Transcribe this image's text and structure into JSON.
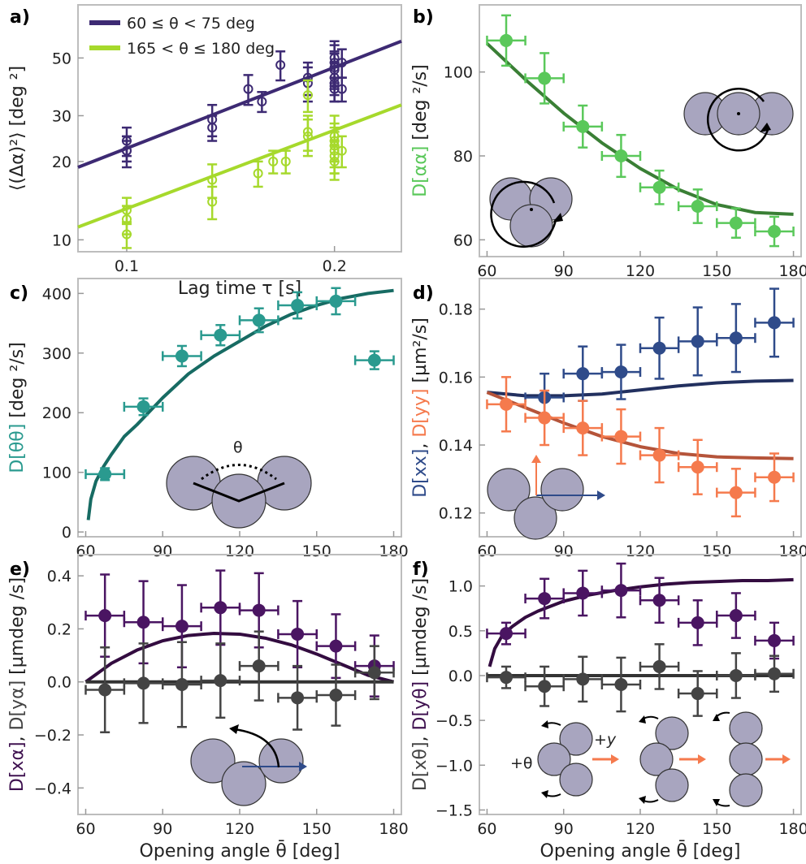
{
  "chart_data": [
    {
      "id": "a",
      "panel_label": "a)",
      "type": "scatter",
      "xlog": true,
      "ylog": true,
      "xlim": [
        0.085,
        0.25
      ],
      "ylim": [
        9,
        80
      ],
      "xticks": [
        0.1,
        0.2
      ],
      "xtick_labels": [
        "0.1",
        "0.2"
      ],
      "yticks": [
        10,
        20,
        30,
        50
      ],
      "ytick_labels": [
        "10",
        "20",
        "30",
        "50"
      ],
      "xlabel": "Lag time τ [s]",
      "ylabel": "⟨(Δα)²⟩ [deg ²]",
      "legend": [
        {
          "label": "60 ≤ θ < 75 deg",
          "color": "#3d2a73"
        },
        {
          "label": "165 < θ ≤ 180 deg",
          "color": "#a6d92c"
        }
      ],
      "series": [
        {
          "name": "60 ≤ θ < 75 deg",
          "color": "#3d2a73",
          "marker": "open-circle",
          "x": [
            0.1,
            0.1,
            0.1,
            0.133,
            0.133,
            0.15,
            0.157,
            0.167,
            0.183,
            0.183,
            0.2,
            0.2,
            0.2,
            0.2,
            0.2,
            0.2,
            0.2,
            0.205,
            0.205
          ],
          "y": [
            22,
            24,
            22,
            29,
            27,
            38,
            34,
            47,
            40,
            42,
            50,
            48,
            45,
            42,
            40,
            46,
            38,
            48,
            38
          ],
          "yerr": [
            3,
            3,
            2,
            4,
            3,
            5,
            3,
            6,
            6,
            6,
            8,
            8,
            7,
            6,
            6,
            7,
            4,
            6,
            4
          ],
          "fit_x": [
            0.085,
            0.25
          ],
          "fit_y": [
            19.0,
            58.0
          ]
        },
        {
          "name": "165 < θ ≤ 180 deg",
          "color": "#a6d92c",
          "marker": "open-circle",
          "x": [
            0.1,
            0.1,
            0.1,
            0.133,
            0.133,
            0.155,
            0.163,
            0.17,
            0.183,
            0.183,
            0.183,
            0.2,
            0.2,
            0.2,
            0.2,
            0.2,
            0.2,
            0.205
          ],
          "y": [
            13,
            12,
            10.5,
            17,
            14,
            18,
            20,
            20,
            36,
            26,
            25,
            25,
            22,
            20,
            21,
            23,
            24,
            22
          ],
          "yerr": [
            1.5,
            1.5,
            1.2,
            2.5,
            2,
            2,
            2,
            2,
            5,
            4,
            4,
            5,
            4,
            3,
            3,
            4,
            4,
            3
          ],
          "fit_x": [
            0.085,
            0.25
          ],
          "fit_y": [
            11.2,
            33.0
          ]
        }
      ]
    },
    {
      "id": "b",
      "panel_label": "b)",
      "type": "scatter",
      "xlim": [
        57,
        183
      ],
      "ylim": [
        56,
        116
      ],
      "xticks": [
        60,
        90,
        120,
        150,
        180
      ],
      "yticks": [
        60,
        80,
        100
      ],
      "xlabel": "",
      "ylabel_parts": [
        [
          "D[αα]",
          "#5ac85a"
        ],
        [
          " [deg ²/s]",
          "#222"
        ]
      ],
      "series": [
        {
          "color": "#5ac85a",
          "marker": "filled-circle",
          "x": [
            67.5,
            82.5,
            97.5,
            112.5,
            127.5,
            142.5,
            157.5,
            172.5
          ],
          "y": [
            107.5,
            98.5,
            87,
            80,
            72.5,
            68,
            64,
            62
          ],
          "xerr": [
            7.5,
            7.5,
            7.5,
            7.5,
            7.5,
            7.5,
            7.5,
            7.5
          ],
          "yerr": [
            6,
            6,
            5,
            5,
            4,
            4,
            3.5,
            3.5
          ],
          "curve": {
            "color": "#3a7f35",
            "x": [
              60,
              75,
              90,
              105,
              120,
              135,
              150,
              165,
              180
            ],
            "y": [
              106.8,
              98.2,
              90.2,
              83.1,
              77.0,
              72.0,
              68.4,
              66.5,
              66.1
            ]
          }
        }
      ]
    },
    {
      "id": "c",
      "panel_label": "c)",
      "type": "scatter",
      "xlim": [
        57,
        183
      ],
      "ylim": [
        -8,
        425
      ],
      "xticks": [
        60,
        90,
        120,
        150,
        180
      ],
      "yticks": [
        0,
        100,
        200,
        300,
        400
      ],
      "xlabel": "",
      "ylabel_parts": [
        [
          "D[θθ]",
          "#2a9a8f"
        ],
        [
          " [deg ²/s]",
          "#222"
        ]
      ],
      "series": [
        {
          "color": "#2a9a8f",
          "marker": "filled-circle",
          "x": [
            67.5,
            82.5,
            97.5,
            112.5,
            127.5,
            142.5,
            157.5,
            172.5
          ],
          "y": [
            97,
            210,
            295,
            330,
            355,
            380,
            387,
            288
          ],
          "xerr": [
            7.5,
            7.5,
            7.5,
            7.5,
            7.5,
            7.5,
            7.5,
            7.5
          ],
          "yerr": [
            10,
            14,
            17,
            17,
            20,
            22,
            22,
            15
          ],
          "curve": {
            "color": "#176b63",
            "x": [
              61,
              62,
              64,
              67,
              70,
              75,
              80,
              90,
              100,
              110,
              120,
              130,
              140,
              150,
              160,
              170,
              180
            ],
            "y": [
              20,
              55,
              85,
              110,
              130,
              160,
              180,
              225,
              265,
              295,
              320,
              345,
              365,
              380,
              392,
              400,
              405
            ]
          }
        }
      ]
    },
    {
      "id": "d",
      "panel_label": "d)",
      "type": "scatter",
      "xlim": [
        57,
        183
      ],
      "ylim": [
        0.113,
        0.189
      ],
      "xticks": [
        60,
        90,
        120,
        150,
        180
      ],
      "yticks": [
        0.12,
        0.14,
        0.16,
        0.18
      ],
      "xlabel": "",
      "ylabel_parts": [
        [
          "D[xx]",
          "#2f4b8a"
        ],
        [
          ", ",
          "#222"
        ],
        [
          "D[yy]",
          "#f57a4d"
        ],
        [
          " [µm²/s]",
          "#222"
        ]
      ],
      "series": [
        {
          "name": "D[xx]",
          "color": "#2f4b8a",
          "marker": "filled-circle",
          "x": [
            82.5,
            97.5,
            112.5,
            127.5,
            142.5,
            157.5,
            172.5
          ],
          "y": [
            0.154,
            0.161,
            0.1615,
            0.1685,
            0.1705,
            0.1715,
            0.176
          ],
          "xerr": [
            7.5,
            7.5,
            7.5,
            7.5,
            7.5,
            7.5,
            7.5
          ],
          "yerr": [
            0.007,
            0.008,
            0.008,
            0.009,
            0.01,
            0.01,
            0.01
          ],
          "curve": {
            "color": "#22305f",
            "x": [
              60,
              75,
              90,
              105,
              120,
              135,
              150,
              165,
              180
            ],
            "y": [
              0.1555,
              0.1545,
              0.1545,
              0.155,
              0.1562,
              0.1574,
              0.1583,
              0.1588,
              0.159
            ]
          }
        },
        {
          "name": "D[yy]",
          "color": "#f57a4d",
          "marker": "filled-circle",
          "x": [
            67.5,
            82.5,
            97.5,
            112.5,
            127.5,
            142.5,
            157.5,
            172.5
          ],
          "y": [
            0.152,
            0.148,
            0.145,
            0.1425,
            0.137,
            0.1335,
            0.126,
            0.1305
          ],
          "xerr": [
            7.5,
            7.5,
            7.5,
            7.5,
            7.5,
            7.5,
            7.5,
            7.5
          ],
          "yerr": [
            0.008,
            0.008,
            0.008,
            0.008,
            0.008,
            0.008,
            0.007,
            0.007
          ],
          "curve": {
            "color": "#b5543a",
            "x": [
              60,
              75,
              90,
              105,
              120,
              135,
              150,
              165,
              180
            ],
            "y": [
              0.1555,
              0.151,
              0.1465,
              0.1425,
              0.1395,
              0.1375,
              0.1365,
              0.1362,
              0.136
            ]
          }
        }
      ]
    },
    {
      "id": "e",
      "panel_label": "e)",
      "type": "scatter",
      "xlim": [
        57,
        183
      ],
      "ylim": [
        -0.5,
        0.48
      ],
      "xticks": [
        60,
        90,
        120,
        150,
        180
      ],
      "yticks": [
        -0.4,
        -0.2,
        0.0,
        0.2,
        0.4
      ],
      "ytick_labels": [
        "−0.4",
        "−0.2",
        "0.0",
        "0.2",
        "0.4"
      ],
      "xlabel": "Opening angle θ̄ [deg]",
      "ylabel_parts": [
        [
          "D[xα]",
          "#3f1250"
        ],
        [
          ", ",
          "#222"
        ],
        [
          "D[yα]",
          "#444444"
        ],
        [
          " [µmdeg /s]",
          "#222"
        ]
      ],
      "series": [
        {
          "name": "D[xα]",
          "color": "#4a1562",
          "marker": "filled-circle",
          "x": [
            67.5,
            82.5,
            97.5,
            112.5,
            127.5,
            142.5,
            157.5,
            172.5
          ],
          "y": [
            0.25,
            0.225,
            0.21,
            0.28,
            0.27,
            0.18,
            0.135,
            0.06
          ],
          "xerr": [
            7.5,
            7.5,
            7.5,
            7.5,
            7.5,
            7.5,
            7.5,
            7.5
          ],
          "yerr": [
            0.155,
            0.155,
            0.155,
            0.14,
            0.14,
            0.125,
            0.12,
            0.115
          ],
          "curve": {
            "color": "#330c40",
            "x": [
              60,
              70,
              80,
              90,
              100,
              110,
              120,
              130,
              140,
              150,
              160,
              170,
              180
            ],
            "y": [
              0.0,
              0.07,
              0.12,
              0.155,
              0.175,
              0.183,
              0.18,
              0.165,
              0.14,
              0.105,
              0.065,
              0.025,
              0.0
            ]
          }
        },
        {
          "name": "D[yα]",
          "color": "#444444",
          "marker": "filled-circle",
          "x": [
            67.5,
            82.5,
            97.5,
            112.5,
            127.5,
            142.5,
            157.5,
            172.5
          ],
          "y": [
            -0.03,
            -0.005,
            -0.01,
            0.005,
            0.06,
            -0.06,
            -0.05,
            0.035
          ],
          "xerr": [
            7.5,
            7.5,
            7.5,
            7.5,
            7.5,
            7.5,
            7.5,
            7.5
          ],
          "yerr": [
            0.16,
            0.15,
            0.16,
            0.14,
            0.13,
            0.12,
            0.115,
            0.1
          ],
          "curve": {
            "color": "#333333",
            "x": [
              60,
              180
            ],
            "y": [
              0.0,
              0.0
            ]
          }
        }
      ]
    },
    {
      "id": "f",
      "panel_label": "f)",
      "type": "scatter",
      "xlim": [
        57,
        183
      ],
      "ylim": [
        -1.55,
        1.35
      ],
      "xticks": [
        60,
        90,
        120,
        150,
        180
      ],
      "yticks": [
        -1.5,
        -1.0,
        -0.5,
        0.0,
        0.5,
        1.0
      ],
      "ytick_labels": [
        "−1.5",
        "−1.0",
        "−0.5",
        "0.0",
        "0.5",
        "1.0"
      ],
      "xlabel": "Opening angle θ̄ [deg]",
      "ylabel_parts": [
        [
          "D[xθ]",
          "#444444"
        ],
        [
          ", ",
          "#222"
        ],
        [
          "D[yθ]",
          "#3f1250"
        ],
        [
          " [µmdeg /s]",
          "#222"
        ]
      ],
      "series": [
        {
          "name": "D[yθ]",
          "color": "#4a1562",
          "marker": "filled-circle",
          "x": [
            67.5,
            82.5,
            97.5,
            112.5,
            127.5,
            142.5,
            157.5,
            172.5
          ],
          "y": [
            0.47,
            0.86,
            0.92,
            0.95,
            0.84,
            0.59,
            0.67,
            0.39
          ],
          "xerr": [
            7.5,
            7.5,
            7.5,
            7.5,
            7.5,
            7.5,
            7.5,
            7.5
          ],
          "yerr": [
            0.12,
            0.22,
            0.25,
            0.3,
            0.25,
            0.25,
            0.25,
            0.2
          ],
          "curve": {
            "color": "#330c40",
            "x": [
              61,
              63,
              66,
              70,
              75,
              80,
              90,
              100,
              110,
              120,
              130,
              140,
              150,
              160,
              170,
              180
            ],
            "y": [
              0.1,
              0.3,
              0.45,
              0.55,
              0.65,
              0.72,
              0.83,
              0.9,
              0.95,
              0.99,
              1.02,
              1.04,
              1.05,
              1.06,
              1.06,
              1.07
            ]
          }
        },
        {
          "name": "D[xθ]",
          "color": "#444444",
          "marker": "filled-circle",
          "x": [
            67.5,
            82.5,
            97.5,
            112.5,
            127.5,
            142.5,
            157.5,
            172.5
          ],
          "y": [
            -0.02,
            -0.12,
            -0.04,
            -0.1,
            0.1,
            -0.2,
            0.0,
            0.02
          ],
          "xerr": [
            7.5,
            7.5,
            7.5,
            7.5,
            7.5,
            7.5,
            7.5,
            7.5
          ],
          "yerr": [
            0.12,
            0.22,
            0.25,
            0.3,
            0.25,
            0.25,
            0.25,
            0.2
          ],
          "curve": {
            "color": "#333333",
            "x": [
              60,
              180
            ],
            "y": [
              0.0,
              0.0
            ]
          }
        }
      ]
    }
  ],
  "insets": {
    "c_theta": "θ",
    "f_plus_theta": "+θ",
    "f_plus_y": "+y"
  }
}
